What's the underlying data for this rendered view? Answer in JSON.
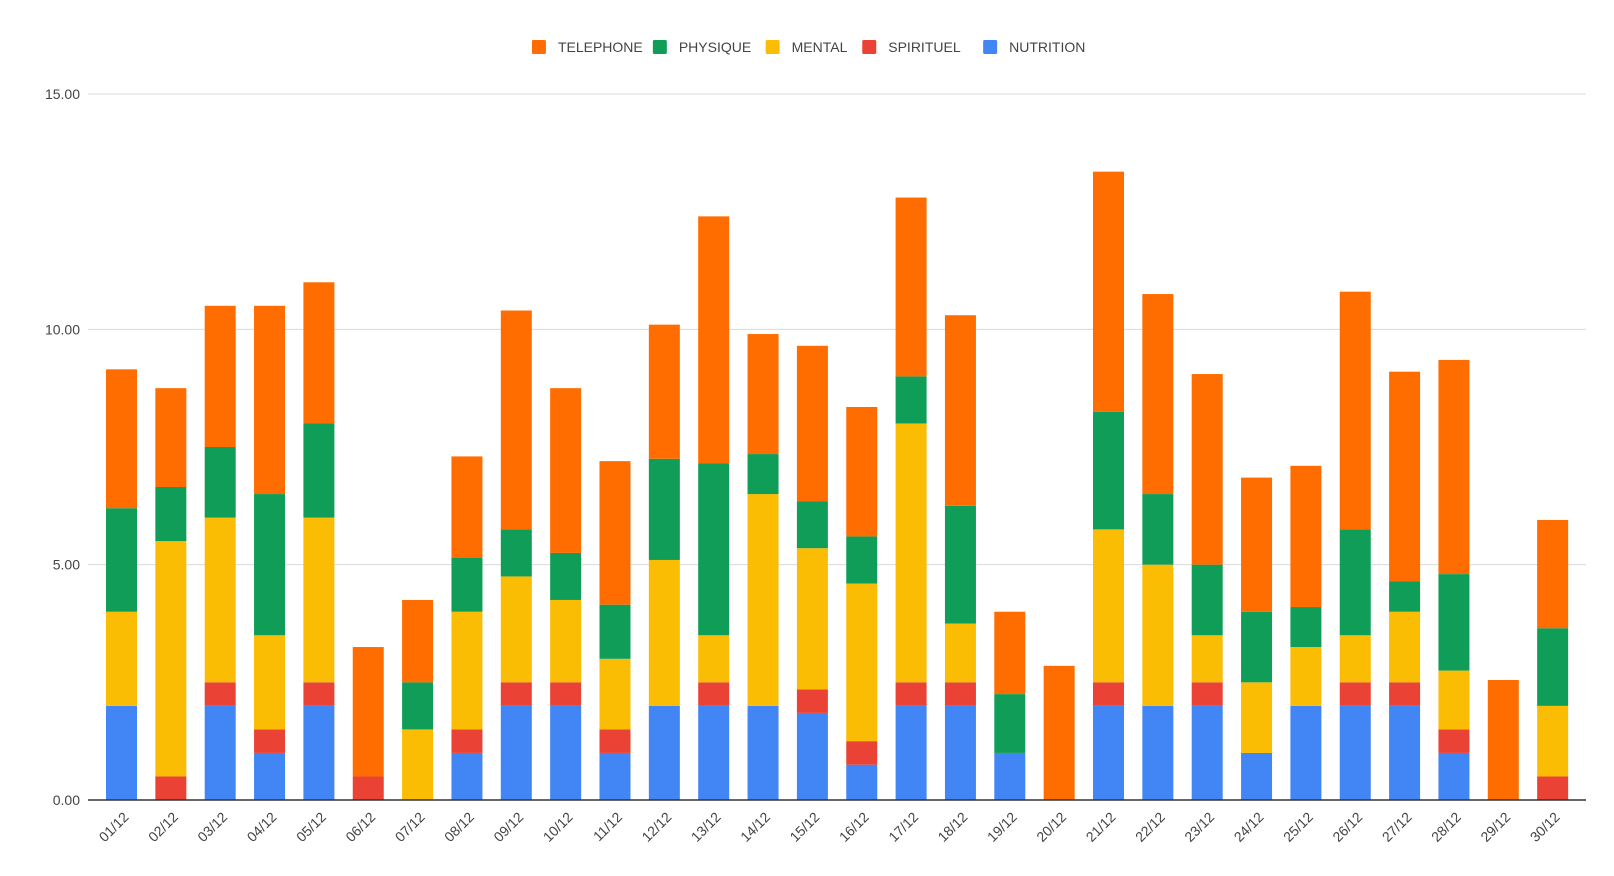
{
  "chart_data": {
    "type": "bar",
    "stacked": true,
    "title": "",
    "xlabel": "",
    "ylabel": "",
    "ylim": [
      0,
      15
    ],
    "yticks": [
      0,
      5,
      10,
      15
    ],
    "ytick_labels": [
      "0.00",
      "5.00",
      "10.00",
      "15.00"
    ],
    "grid": true,
    "legend_position": "top",
    "categories": [
      "01/12",
      "02/12",
      "03/12",
      "04/12",
      "05/12",
      "06/12",
      "07/12",
      "08/12",
      "09/12",
      "10/12",
      "11/12",
      "12/12",
      "13/12",
      "14/12",
      "15/12",
      "16/12",
      "17/12",
      "18/12",
      "19/12",
      "20/12",
      "21/12",
      "22/12",
      "23/12",
      "24/12",
      "25/12",
      "26/12",
      "27/12",
      "28/12",
      "29/12",
      "30/12"
    ],
    "legend_order": [
      "TELEPHONE",
      "PHYSIQUE",
      "MENTAL",
      "SPIRITUEL",
      "NUTRITION"
    ],
    "series": [
      {
        "name": "NUTRITION",
        "color": "#4285f4",
        "values": [
          2,
          0,
          2,
          1,
          2,
          0,
          0,
          1,
          2,
          2,
          1,
          2,
          2,
          2,
          1.85,
          0.75,
          2,
          2,
          1,
          0,
          2,
          2,
          2,
          1,
          2,
          2,
          2,
          1,
          0,
          0
        ]
      },
      {
        "name": "SPIRITUEL",
        "color": "#ea4335",
        "values": [
          0,
          0.5,
          0.5,
          0.5,
          0.5,
          0.5,
          0,
          0.5,
          0.5,
          0.5,
          0.5,
          0,
          0.5,
          0,
          0.5,
          0.5,
          0.5,
          0.5,
          0,
          0,
          0.5,
          0,
          0.5,
          0,
          0,
          0.5,
          0.5,
          0.5,
          0,
          0.5
        ]
      },
      {
        "name": "MENTAL",
        "color": "#fbbc04",
        "values": [
          2,
          5,
          3.5,
          2,
          3.5,
          0,
          1.5,
          2.5,
          2.25,
          1.75,
          1.5,
          3.1,
          1,
          4.5,
          3,
          3.35,
          5.5,
          1.25,
          0,
          0,
          3.25,
          3,
          1,
          1.5,
          1.25,
          1,
          1.5,
          1.25,
          0,
          1.5
        ]
      },
      {
        "name": "PHYSIQUE",
        "color": "#0f9d58",
        "values": [
          2.2,
          1.15,
          1.5,
          3,
          2,
          0,
          1,
          1.15,
          1,
          1,
          1.15,
          2.15,
          3.65,
          0.85,
          1,
          1,
          1,
          2.5,
          1.25,
          0,
          2.5,
          1.5,
          1.5,
          1.5,
          0.85,
          2.25,
          0.65,
          2.05,
          0,
          1.65
        ]
      },
      {
        "name": "TELEPHONE",
        "color": "#ff6d01",
        "values": [
          2.95,
          2.1,
          3,
          4,
          3,
          2.75,
          1.75,
          2.15,
          4.65,
          3.5,
          3.05,
          2.85,
          5.25,
          2.55,
          3.3,
          2.75,
          3.8,
          4.05,
          1.75,
          2.85,
          5.1,
          4.25,
          4.05,
          2.85,
          3,
          5.05,
          4.45,
          4.55,
          2.55,
          2.3
        ]
      }
    ]
  }
}
